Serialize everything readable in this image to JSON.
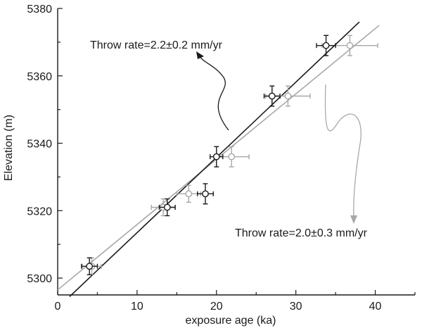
{
  "chart_data": {
    "type": "scatter",
    "xlabel": "exposure age (ka)",
    "ylabel": "Elevation (m)",
    "xlim": [
      0,
      45
    ],
    "ylim": [
      5295,
      5380
    ],
    "x_ticks": [
      0,
      10,
      20,
      30,
      40
    ],
    "y_ticks": [
      5300,
      5320,
      5340,
      5360,
      5380
    ],
    "grid": false,
    "series": [
      {
        "color": "#1a1a1a",
        "points": [
          {
            "x": 4.0,
            "y": 5303.5,
            "xerr": 1.0,
            "yerr": 2.5
          },
          {
            "x": 13.8,
            "y": 5321.0,
            "xerr": 1.0,
            "yerr": 2.5
          },
          {
            "x": 18.6,
            "y": 5325.0,
            "xerr": 1.0,
            "yerr": 3.0
          },
          {
            "x": 20.0,
            "y": 5336.0,
            "xerr": 0.8,
            "yerr": 3.0
          },
          {
            "x": 27.0,
            "y": 5354.0,
            "xerr": 1.0,
            "yerr": 3.0
          },
          {
            "x": 33.8,
            "y": 5369.0,
            "xerr": 1.2,
            "yerr": 3.0
          }
        ],
        "fit_line": {
          "x0": 1.5,
          "y0": 5294.5,
          "x1": 38.0,
          "y1": 5376.0
        }
      },
      {
        "color": "#a8a8a8",
        "points": [
          {
            "x": 4.3,
            "y": 5303.5,
            "xerr": 1.2,
            "yerr": 2.5
          },
          {
            "x": 13.3,
            "y": 5321.0,
            "xerr": 1.5,
            "yerr": 2.5
          },
          {
            "x": 16.5,
            "y": 5325.0,
            "xerr": 1.5,
            "yerr": 2.5
          },
          {
            "x": 21.9,
            "y": 5336.0,
            "xerr": 2.2,
            "yerr": 3.0
          },
          {
            "x": 29.0,
            "y": 5354.0,
            "xerr": 2.8,
            "yerr": 3.0
          },
          {
            "x": 36.8,
            "y": 5369.0,
            "xerr": 3.5,
            "yerr": 3.0
          }
        ],
        "fit_line": {
          "x0": 0.0,
          "y0": 5296.5,
          "x1": 40.5,
          "y1": 5375.0
        }
      }
    ],
    "annotations": [
      {
        "text": "Throw rate=2.2±0.2 mm/yr",
        "color": "#1a1a1a"
      },
      {
        "text": "Throw rate=2.0±0.3 mm/yr",
        "color": "#1a1a1a"
      }
    ]
  }
}
